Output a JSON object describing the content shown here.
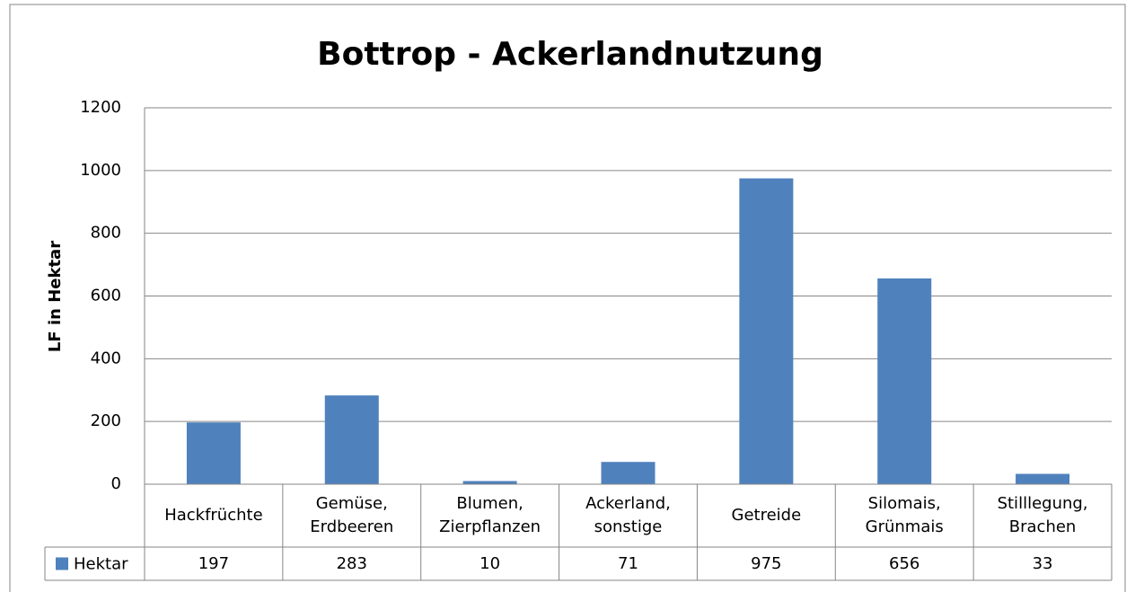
{
  "chart_data": {
    "type": "bar",
    "title": "Bottrop - Ackerlandnutzung",
    "y_label": "LF in Hektar",
    "categories": [
      "Hackfrüchte",
      "Gemüse, Erdbeeren",
      "Blumen, Zierpflanzen",
      "Ackerland, sonstige",
      "Getreide",
      "Silomais, Grünmais",
      "Stilllegung, Brachen"
    ],
    "series": [
      {
        "name": "Hektar",
        "color": "#4f81bd",
        "values": [
          197,
          283,
          10,
          71,
          975,
          656,
          33
        ]
      }
    ],
    "ylim": [
      0,
      1200
    ],
    "yticks": [
      0,
      200,
      400,
      600,
      800,
      1000,
      1200
    ],
    "grid": true,
    "data_table": true
  }
}
